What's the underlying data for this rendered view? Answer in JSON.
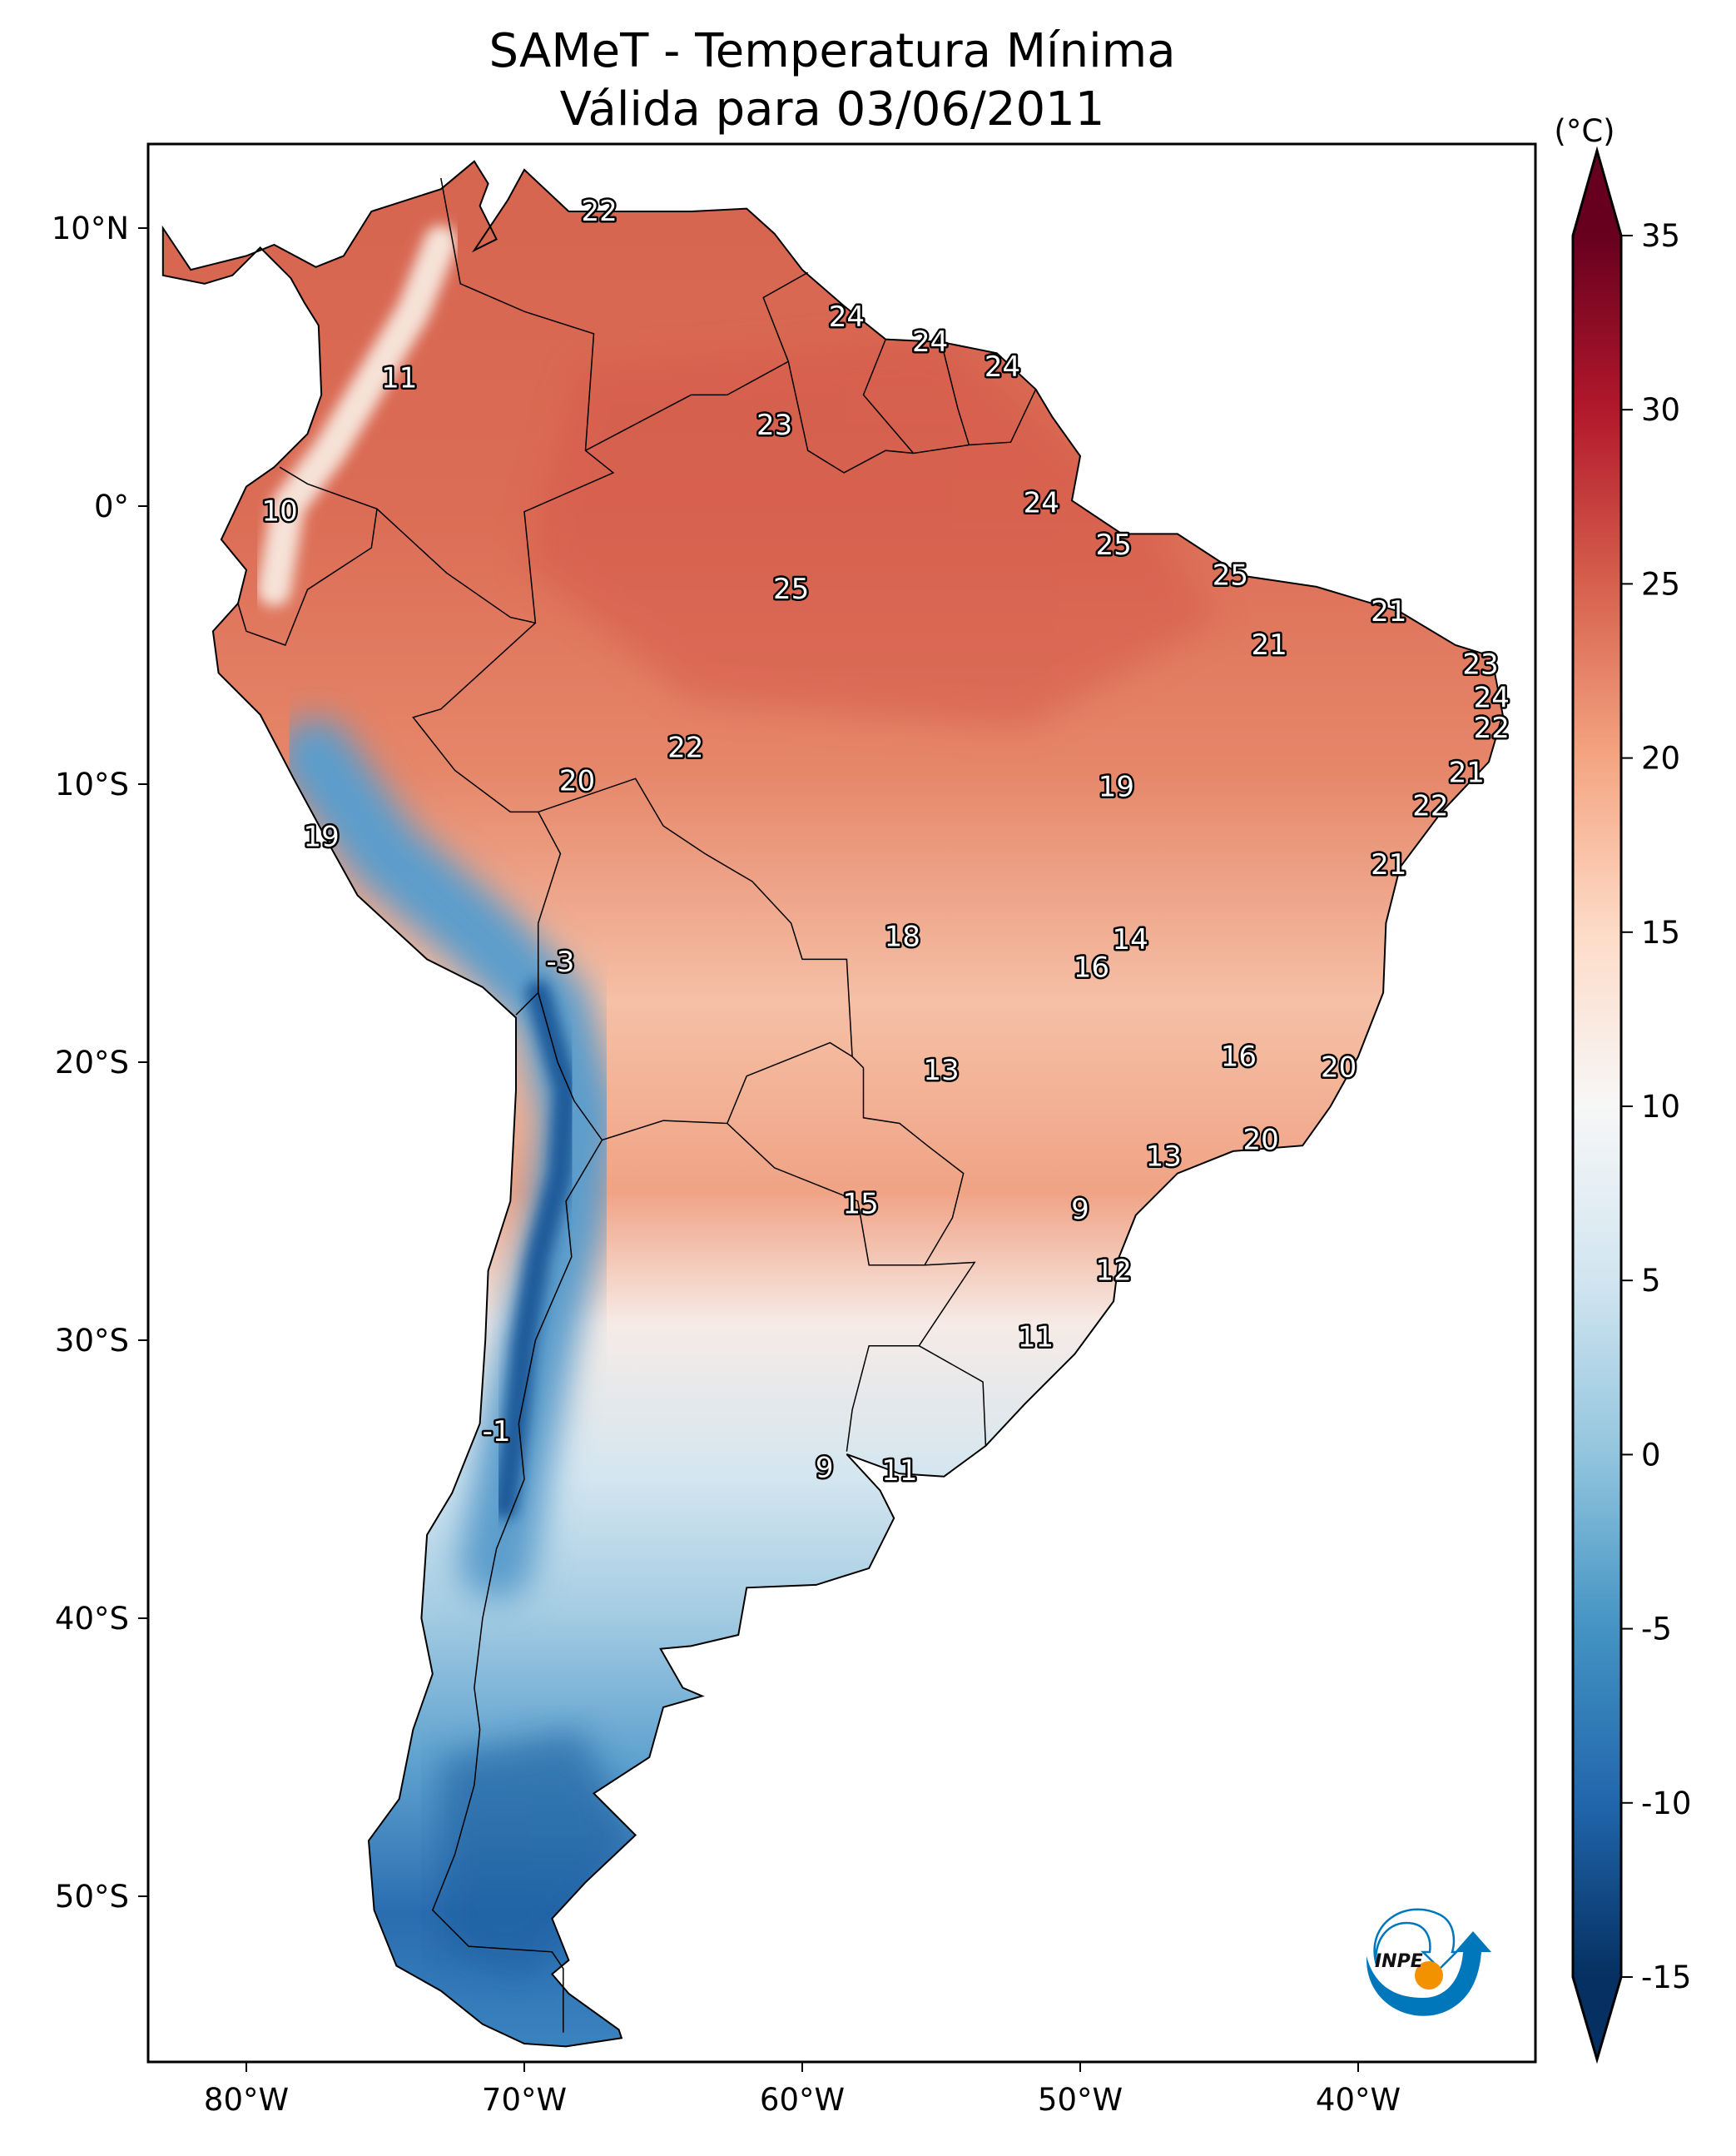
{
  "title": {
    "line1": "SAMeT - Temperatura Mínima",
    "line2": "Válida para 03/06/2011"
  },
  "colorbar": {
    "unit_label": "(°C)",
    "min": -15,
    "max": 35,
    "extend": "both",
    "colormap": "RdBu_r",
    "ticks": [
      -15,
      -10,
      -5,
      0,
      5,
      10,
      15,
      20,
      25,
      30,
      35
    ],
    "tick_labels": [
      "-15",
      "-10",
      "-5",
      "0",
      "5",
      "10",
      "15",
      "20",
      "25",
      "30",
      "35"
    ],
    "colors": [
      "#053061",
      "#2166ac",
      "#4393c3",
      "#92c5de",
      "#d1e5f0",
      "#f7f7f7",
      "#fddbc7",
      "#f4a582",
      "#d6604d",
      "#b2182b",
      "#67001f"
    ]
  },
  "map": {
    "lon_range": [
      -83,
      -32.5
    ],
    "lat_range": [
      -56,
      13
    ],
    "lon_ticks": [
      {
        "value": -80,
        "label": "80°W"
      },
      {
        "value": -70,
        "label": "70°W"
      },
      {
        "value": -60,
        "label": "60°W"
      },
      {
        "value": -50,
        "label": "50°W"
      },
      {
        "value": -40,
        "label": "40°W"
      }
    ],
    "lat_ticks": [
      {
        "value": 10,
        "label": "10°N"
      },
      {
        "value": 0,
        "label": "0°"
      },
      {
        "value": -10,
        "label": "10°S"
      },
      {
        "value": -20,
        "label": "20°S"
      },
      {
        "value": -30,
        "label": "30°S"
      },
      {
        "value": -40,
        "label": "40°S"
      },
      {
        "value": -50,
        "label": "50°S"
      }
    ],
    "field": "Temperatura Mínima (°C)"
  },
  "labels": [
    {
      "text": "22",
      "lon": -67.3,
      "lat": 10.6
    },
    {
      "text": "24",
      "lon": -58.4,
      "lat": 6.8
    },
    {
      "text": "24",
      "lon": -55.4,
      "lat": 5.9
    },
    {
      "text": "24",
      "lon": -52.8,
      "lat": 5.0
    },
    {
      "text": "11",
      "lon": -74.5,
      "lat": 4.6
    },
    {
      "text": "23",
      "lon": -61.0,
      "lat": 2.9
    },
    {
      "text": "10",
      "lon": -78.8,
      "lat": -0.2
    },
    {
      "text": "24",
      "lon": -51.4,
      "lat": 0.1
    },
    {
      "text": "25",
      "lon": -48.8,
      "lat": -1.4
    },
    {
      "text": "25",
      "lon": -44.6,
      "lat": -2.5
    },
    {
      "text": "25",
      "lon": -60.4,
      "lat": -3.0
    },
    {
      "text": "21",
      "lon": -38.9,
      "lat": -3.8
    },
    {
      "text": "21",
      "lon": -43.2,
      "lat": -5.0
    },
    {
      "text": "23",
      "lon": -35.6,
      "lat": -5.7
    },
    {
      "text": "24",
      "lon": -35.2,
      "lat": -6.9
    },
    {
      "text": "22",
      "lon": -35.2,
      "lat": -8.0
    },
    {
      "text": "22",
      "lon": -64.2,
      "lat": -8.7
    },
    {
      "text": "21",
      "lon": -36.1,
      "lat": -9.6
    },
    {
      "text": "20",
      "lon": -68.1,
      "lat": -9.9
    },
    {
      "text": "19",
      "lon": -48.7,
      "lat": -10.1
    },
    {
      "text": "22",
      "lon": -37.4,
      "lat": -10.8
    },
    {
      "text": "19",
      "lon": -77.3,
      "lat": -11.9
    },
    {
      "text": "21",
      "lon": -38.9,
      "lat": -12.9
    },
    {
      "text": "18",
      "lon": -56.4,
      "lat": -15.5
    },
    {
      "text": "14",
      "lon": -48.2,
      "lat": -15.6
    },
    {
      "text": "16",
      "lon": -49.6,
      "lat": -16.6
    },
    {
      "text": "-3",
      "lon": -68.7,
      "lat": -16.4
    },
    {
      "text": "16",
      "lon": -44.3,
      "lat": -19.8
    },
    {
      "text": "20",
      "lon": -40.7,
      "lat": -20.2
    },
    {
      "text": "13",
      "lon": -55.0,
      "lat": -20.3
    },
    {
      "text": "20",
      "lon": -43.5,
      "lat": -22.8
    },
    {
      "text": "13",
      "lon": -47.0,
      "lat": -23.4
    },
    {
      "text": "9",
      "lon": -50.0,
      "lat": -25.3
    },
    {
      "text": "15",
      "lon": -57.9,
      "lat": -25.1
    },
    {
      "text": "12",
      "lon": -48.8,
      "lat": -27.5
    },
    {
      "text": "11",
      "lon": -51.6,
      "lat": -29.9
    },
    {
      "text": "-1",
      "lon": -71.0,
      "lat": -33.3
    },
    {
      "text": "9",
      "lon": -59.2,
      "lat": -34.6
    },
    {
      "text": "11",
      "lon": -56.5,
      "lat": -34.7
    }
  ],
  "logo": {
    "text": "INPE",
    "colors": {
      "blue": "#0077bb",
      "orange": "#f39200"
    }
  }
}
